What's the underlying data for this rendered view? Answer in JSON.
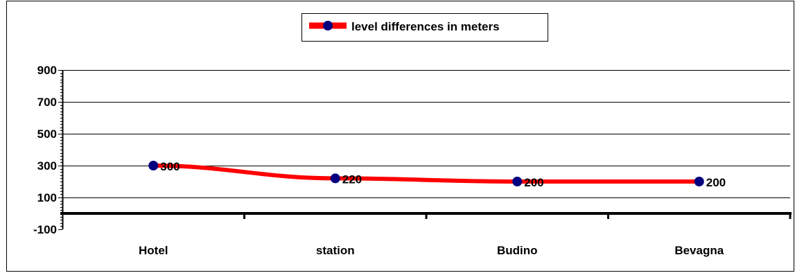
{
  "chart_data": {
    "type": "line",
    "categories": [
      "Hotel",
      "station",
      "Budino",
      "Bevagna"
    ],
    "series": [
      {
        "name": "level differences  in meters",
        "values": [
          300,
          220,
          200,
          200
        ]
      }
    ],
    "data_labels": [
      "300",
      "220",
      "200",
      "200"
    ],
    "ylim": [
      -100,
      900
    ],
    "y_tick_labels": [
      "900",
      "700",
      "500",
      "300",
      "100",
      "-100"
    ],
    "y_tick_values": [
      900,
      700,
      500,
      300,
      100,
      -100
    ],
    "grid": true,
    "legend_position": "top-center",
    "colors": {
      "line": "#ff0000",
      "marker": "#000080",
      "grid": "#000000",
      "background": "#ffffff"
    },
    "title": "",
    "xlabel": "",
    "ylabel": ""
  }
}
